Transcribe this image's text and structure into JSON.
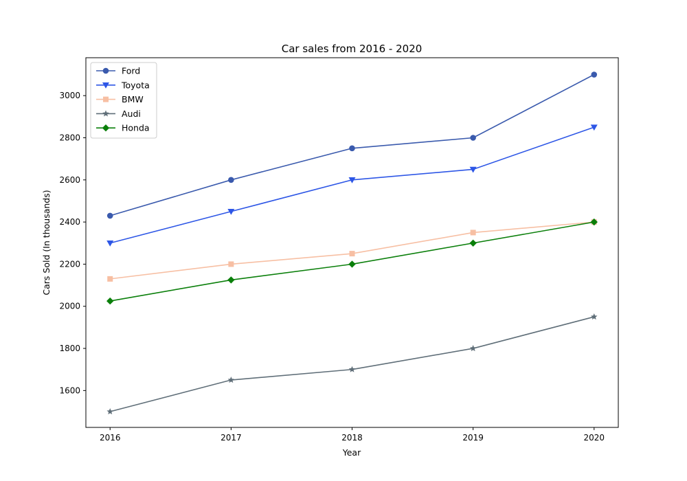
{
  "chart_data": {
    "type": "line",
    "title": "Car sales from 2016 - 2020",
    "xlabel": "Year",
    "ylabel": "Cars Sold (In thousands)",
    "x": [
      2016,
      2017,
      2018,
      2019,
      2020
    ],
    "x_tick_labels": [
      "2016",
      "2017",
      "2018",
      "2019",
      "2020"
    ],
    "xlim": [
      2015.8,
      2020.2
    ],
    "ylim": [
      1425,
      3180
    ],
    "y_ticks": [
      1600,
      1800,
      2000,
      2200,
      2400,
      2600,
      2800,
      3000
    ],
    "y_tick_labels": [
      "1600",
      "1800",
      "2000",
      "2200",
      "2400",
      "2600",
      "2800",
      "3000"
    ],
    "grid": false,
    "legend_position": "top-left",
    "series": [
      {
        "name": "Ford",
        "values": [
          2430,
          2600,
          2750,
          2800,
          3100
        ],
        "color": "#3a5aad",
        "marker": "circle"
      },
      {
        "name": "Toyota",
        "values": [
          2300,
          2450,
          2600,
          2650,
          2850
        ],
        "color": "#2d56e6",
        "marker": "triangle-down"
      },
      {
        "name": "BMW",
        "values": [
          2130,
          2200,
          2250,
          2350,
          2400
        ],
        "color": "#f7bfa3",
        "marker": "square"
      },
      {
        "name": "Audi",
        "values": [
          1500,
          1650,
          1700,
          1800,
          1950
        ],
        "color": "#5f6e78",
        "marker": "star"
      },
      {
        "name": "Honda",
        "values": [
          2025,
          2125,
          2200,
          2300,
          2400
        ],
        "color": "#0a7f0a",
        "marker": "diamond"
      }
    ]
  }
}
